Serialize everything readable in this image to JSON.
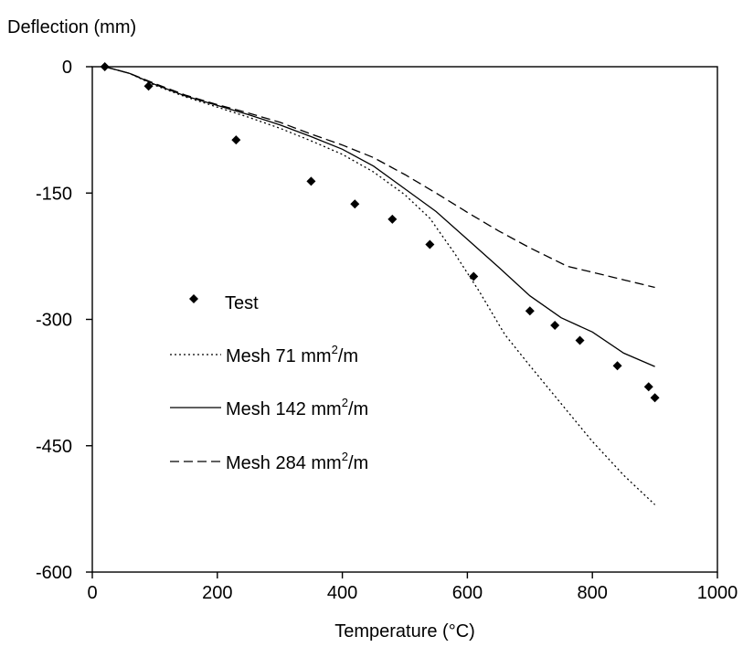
{
  "chart_data": {
    "type": "line",
    "title": "",
    "ylabel": "Deflection (mm)",
    "xlabel": "Temperature (°C)",
    "xlim": [
      0,
      1000
    ],
    "ylim": [
      -600,
      0
    ],
    "x_ticks": [
      0,
      200,
      400,
      600,
      800,
      1000
    ],
    "y_ticks": [
      0,
      -150,
      -300,
      -450,
      -600
    ],
    "grid": false,
    "legend_position": "left",
    "series": [
      {
        "name": "Test",
        "style": "markers",
        "marker": "diamond",
        "x": [
          20,
          90,
          230,
          350,
          420,
          480,
          540,
          610,
          700,
          740,
          780,
          840,
          890,
          900
        ],
        "y": [
          0,
          -23,
          -87,
          -136,
          -163,
          -181,
          -211,
          -249,
          -290,
          -307,
          -325,
          -355,
          -380,
          -393
        ]
      },
      {
        "name": "Mesh 71 mm²/m",
        "legend_text": "Mesh 71 mm",
        "legend_sup": "2",
        "legend_suffix": "/m",
        "style": "dotted",
        "x": [
          20,
          60,
          100,
          150,
          200,
          250,
          300,
          350,
          400,
          450,
          500,
          540,
          580,
          620,
          660,
          700,
          750,
          800,
          850,
          900
        ],
        "y": [
          0,
          -8,
          -22,
          -36,
          -48,
          -60,
          -73,
          -88,
          -104,
          -125,
          -152,
          -180,
          -222,
          -268,
          -318,
          -355,
          -400,
          -445,
          -485,
          -520
        ]
      },
      {
        "name": "Mesh 142 mm²/m",
        "legend_text": "Mesh 142 mm",
        "legend_sup": "2",
        "legend_suffix": "/m",
        "style": "solid",
        "x": [
          20,
          60,
          100,
          150,
          200,
          250,
          300,
          350,
          400,
          450,
          500,
          550,
          600,
          650,
          700,
          750,
          800,
          850,
          900
        ],
        "y": [
          0,
          -8,
          -21,
          -35,
          -46,
          -57,
          -69,
          -83,
          -98,
          -118,
          -145,
          -172,
          -205,
          -238,
          -272,
          -298,
          -315,
          -340,
          -356
        ]
      },
      {
        "name": "Mesh 284 mm²/m",
        "legend_text": "Mesh 284 mm",
        "legend_sup": "2",
        "legend_suffix": "/m",
        "style": "dashed",
        "x": [
          20,
          60,
          100,
          150,
          200,
          250,
          300,
          350,
          400,
          450,
          500,
          550,
          600,
          650,
          700,
          760,
          800,
          850,
          900
        ],
        "y": [
          0,
          -8,
          -20,
          -34,
          -45,
          -55,
          -66,
          -80,
          -93,
          -108,
          -128,
          -150,
          -173,
          -195,
          -215,
          -237,
          -244,
          -253,
          -262
        ]
      }
    ]
  }
}
